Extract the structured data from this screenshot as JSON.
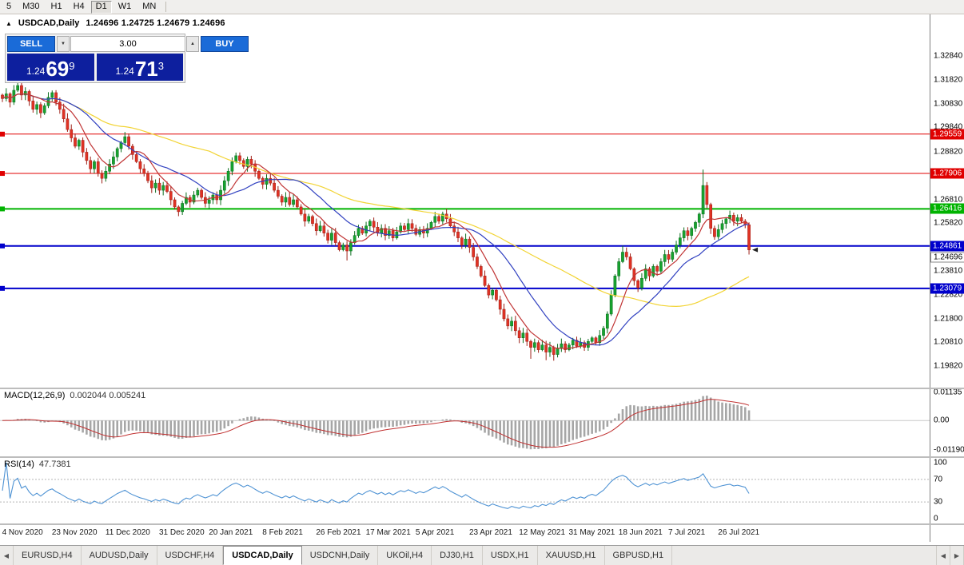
{
  "toolbar": {
    "timeframes": [
      "5",
      "M30",
      "H1",
      "H4",
      "D1",
      "W1",
      "MN"
    ],
    "active": "D1"
  },
  "chart_header": {
    "collapse_icon": "▲",
    "title": "USDCAD,Daily",
    "ohlc": "1.24696 1.24725 1.24679 1.24696"
  },
  "trade_panel": {
    "sell_label": "SELL",
    "buy_label": "BUY",
    "volume": "3.00",
    "volume_down_icon": "▼",
    "volume_up_icon": "▲",
    "sell_price": {
      "prefix": "1.24",
      "big": "69",
      "sup": "9"
    },
    "buy_price": {
      "prefix": "1.24",
      "big": "71",
      "sup": "3"
    }
  },
  "price_scale": {
    "labels": [
      "1.32840",
      "1.31820",
      "1.30830",
      "1.29840",
      "1.28820",
      "1.27830",
      "1.26810",
      "1.25820",
      "1.24830",
      "1.23810",
      "1.22820",
      "1.21800",
      "1.20810",
      "1.19820"
    ]
  },
  "hlines": [
    {
      "price": 1.29559,
      "label": "1.29559",
      "color": "#e00000",
      "w": 1
    },
    {
      "price": 1.27906,
      "label": "1.27906",
      "color": "#e00000",
      "w": 1
    },
    {
      "price": 1.26416,
      "label": "1.26416",
      "color": "#00b300",
      "w": 2
    },
    {
      "price": 1.24861,
      "label": "1.24861",
      "color": "#0000cc",
      "w": 2
    },
    {
      "price": 1.23079,
      "label": "1.23079",
      "color": "#0000cc",
      "w": 2
    }
  ],
  "current_price": {
    "label": "1.24696",
    "value": 1.24696
  },
  "chart_data": {
    "type": "candlestick",
    "symbol": "USDCAD",
    "timeframe": "Daily",
    "ylim": [
      1.1891,
      1.3385
    ],
    "colors": {
      "up": "#17a32f",
      "down": "#e03224",
      "up_border": "#0c6e1f",
      "down_border": "#9e1f16"
    },
    "closes": [
      1.3105,
      1.3125,
      1.309,
      1.314,
      1.316,
      1.312,
      1.3135,
      1.3095,
      1.306,
      1.308,
      1.3045,
      1.3075,
      1.311,
      1.313,
      1.309,
      1.306,
      1.302,
      1.2975,
      1.294,
      1.2905,
      1.293,
      1.288,
      1.2845,
      1.281,
      1.284,
      1.279,
      1.277,
      1.28,
      1.283,
      1.286,
      1.2895,
      1.292,
      1.2945,
      1.2905,
      1.287,
      1.284,
      1.281,
      1.279,
      1.276,
      1.273,
      1.275,
      1.272,
      1.274,
      1.2715,
      1.268,
      1.265,
      1.263,
      1.2665,
      1.269,
      1.267,
      1.27,
      1.272,
      1.269,
      1.2665,
      1.268,
      1.27,
      1.268,
      1.272,
      1.276,
      1.28,
      1.284,
      1.2865,
      1.2845,
      1.282,
      1.285,
      1.283,
      1.28,
      1.277,
      1.2745,
      1.277,
      1.275,
      1.272,
      1.2695,
      1.267,
      1.269,
      1.266,
      1.268,
      1.265,
      1.262,
      1.259,
      1.261,
      1.258,
      1.255,
      1.257,
      1.254,
      1.251,
      1.254,
      1.25,
      1.247,
      1.249,
      1.2465,
      1.25,
      1.253,
      1.256,
      1.254,
      1.257,
      1.259,
      1.2565,
      1.254,
      1.256,
      1.253,
      1.255,
      1.252,
      1.2545,
      1.257,
      1.2555,
      1.258,
      1.256,
      1.2535,
      1.2555,
      1.254,
      1.256,
      1.2585,
      1.261,
      1.259,
      1.262,
      1.26,
      1.257,
      1.2545,
      1.252,
      1.249,
      1.2515,
      1.248,
      1.244,
      1.24,
      1.236,
      1.232,
      1.228,
      1.23,
      1.226,
      1.222,
      1.218,
      1.215,
      1.217,
      1.213,
      1.21,
      1.212,
      1.2085,
      1.206,
      1.208,
      1.205,
      1.207,
      1.204,
      1.206,
      1.203,
      1.2055,
      1.2075,
      1.205,
      1.207,
      1.209,
      1.2065,
      1.208,
      1.206,
      1.2085,
      1.21,
      1.208,
      1.211,
      1.214,
      1.22,
      1.228,
      1.236,
      1.242,
      1.246,
      1.244,
      1.239,
      1.234,
      1.231,
      1.235,
      1.239,
      1.236,
      1.24,
      1.238,
      1.242,
      1.245,
      1.243,
      1.246,
      1.249,
      1.252,
      1.255,
      1.253,
      1.256,
      1.2585,
      1.262,
      1.274,
      1.266,
      1.256,
      1.2525,
      1.2555,
      1.258,
      1.26,
      1.2615,
      1.259,
      1.2605,
      1.259,
      1.2575,
      1.24696
    ],
    "overrides": {
      "4": {
        "high": 1.3172
      },
      "33": {
        "high": 1.2958
      },
      "90": {
        "low": 1.2425
      },
      "138": {
        "low": 1.2012
      },
      "142": {
        "low": 1.2006
      },
      "144": {
        "low": 1.2004
      },
      "162": {
        "high": 1.2487
      },
      "183": {
        "high": 1.2807
      },
      "195": {
        "high": 1.2585,
        "low": 1.245
      }
    },
    "ma": [
      {
        "name": "ma-fast",
        "type": "sma",
        "period": 8,
        "color": "#c03434"
      },
      {
        "name": "ma-medium",
        "type": "sma",
        "period": 20,
        "color": "#3040c0"
      },
      {
        "name": "ma-slow",
        "type": "sma",
        "period": 55,
        "color": "#f2d435"
      }
    ],
    "x_labels": [
      {
        "i": 2,
        "t": "4 Nov 2020"
      },
      {
        "i": 15,
        "t": "23 Nov 2020"
      },
      {
        "i": 29,
        "t": "11 Dec 2020"
      },
      {
        "i": 43,
        "t": "31 Dec 2020"
      },
      {
        "i": 56,
        "t": "20 Jan 2021"
      },
      {
        "i": 70,
        "t": "8 Feb 2021"
      },
      {
        "i": 84,
        "t": "26 Feb 2021"
      },
      {
        "i": 97,
        "t": "17 Mar 2021"
      },
      {
        "i": 110,
        "t": "5 Apr 2021"
      },
      {
        "i": 124,
        "t": "23 Apr 2021"
      },
      {
        "i": 137,
        "t": "12 May 2021"
      },
      {
        "i": 150,
        "t": "31 May 2021"
      },
      {
        "i": 163,
        "t": "18 Jun 2021"
      },
      {
        "i": 176,
        "t": "7 Jul 2021"
      },
      {
        "i": 189,
        "t": "26 Jul 2021"
      }
    ]
  },
  "macd_panel": {
    "title": "MACD(12,26,9)",
    "values": "0.002044 0.005241",
    "params": {
      "fast": 12,
      "slow": 26,
      "signal": 9
    },
    "ylim": [
      -0.0145,
      0.0127
    ],
    "bar_color": "#a6a6a6",
    "signal_color": "#c03030",
    "scale": [
      {
        "label": "0.01135",
        "v": 0.01135
      },
      {
        "label": "0.00",
        "v": 0
      },
      {
        "label": "-0.01190",
        "v": -0.0119
      }
    ]
  },
  "rsi_panel": {
    "title": "RSI(14)",
    "value": "47.7381",
    "period": 14,
    "ylim": [
      -8,
      108
    ],
    "line_color": "#4f93d4",
    "levels": [
      70,
      30
    ],
    "scale": [
      {
        "label": "100",
        "v": 100
      },
      {
        "label": "70",
        "v": 70
      },
      {
        "label": "30",
        "v": 30
      },
      {
        "label": "0",
        "v": 0
      }
    ]
  },
  "tabs": {
    "left_edge_icon": "◀",
    "scroll_left_icon": "◀",
    "scroll_right_icon": "▶",
    "items": [
      "EURUSD,H4",
      "AUDUSD,Daily",
      "USDCHF,H4",
      "USDCAD,Daily",
      "USDCNH,Daily",
      "UKOil,H4",
      "DJ30,H1",
      "USDX,H1",
      "XAUUSD,H1",
      "GBPUSD,H1"
    ],
    "active": "USDCAD,Daily"
  }
}
